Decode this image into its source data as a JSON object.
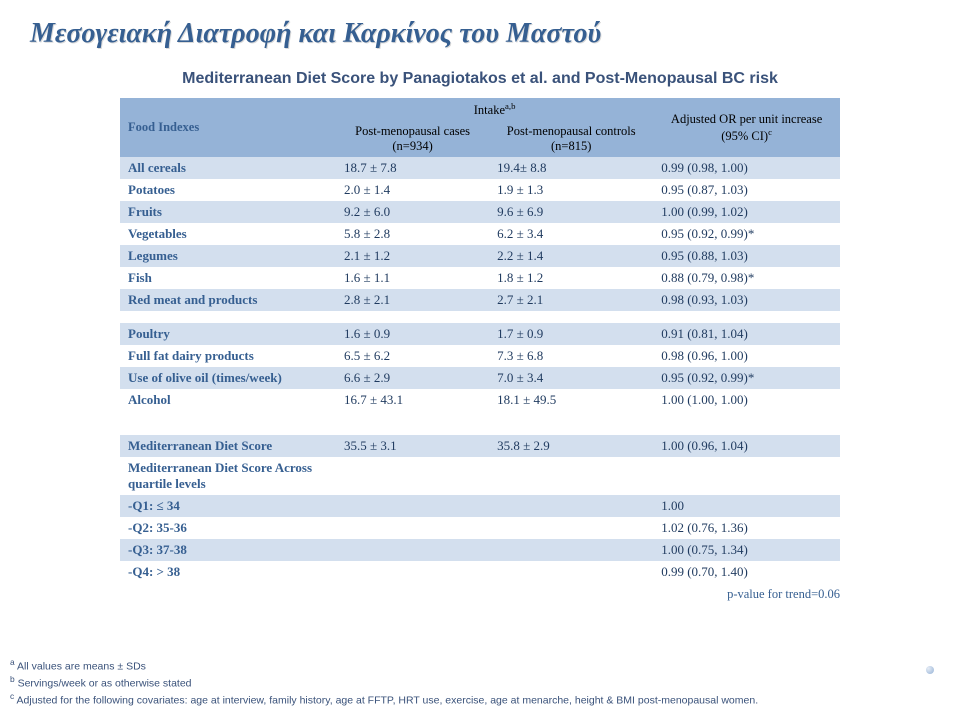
{
  "title": "Μεσογειακή Διατροφή και Καρκίνος του Μαστού",
  "subtitle": "Mediterranean Diet Score by Panagiotakos et al. and Post-Menopausal BC risk",
  "headers": {
    "food_indexes": "Food Indexes",
    "intake": "Intake",
    "intake_sup": "a,b",
    "cases": "Post-menopausal cases (n=934)",
    "controls": "Post-menopausal controls (n=815)",
    "adjusted": "Adjusted OR per unit increase (95% CI)",
    "adjusted_sup": "c"
  },
  "rows1": [
    {
      "label": "All cereals",
      "cases": "18.7 ± 7.8",
      "controls": "19.4± 8.8",
      "or": "0.99 (0.98, 1.00)"
    },
    {
      "label": "Potatoes",
      "cases": "2.0 ± 1.4",
      "controls": "1.9 ± 1.3",
      "or": "0.95 (0.87, 1.03)"
    },
    {
      "label": "Fruits",
      "cases": "9.2 ± 6.0",
      "controls": "9.6 ± 6.9",
      "or": "1.00 (0.99, 1.02)"
    },
    {
      "label": "Vegetables",
      "cases": "5.8 ± 2.8",
      "controls": "6.2 ± 3.4",
      "or": "0.95 (0.92, 0.99)*"
    },
    {
      "label": "Legumes",
      "cases": "2.1 ± 1.2",
      "controls": "2.2 ± 1.4",
      "or": "0.95 (0.88, 1.03)"
    },
    {
      "label": "Fish",
      "cases": "1.6 ± 1.1",
      "controls": "1.8 ± 1.2",
      "or": "0.88 (0.79, 0.98)*"
    },
    {
      "label": "Red meat and products",
      "cases": "2.8 ± 2.1",
      "controls": "2.7 ± 2.1",
      "or": "0.98 (0.93, 1.03)"
    }
  ],
  "rows2": [
    {
      "label": "Poultry",
      "cases": "1.6 ± 0.9",
      "controls": "1.7 ± 0.9",
      "or": "0.91 (0.81, 1.04)"
    },
    {
      "label": "Full fat dairy products",
      "cases": "6.5 ± 6.2",
      "controls": "7.3 ± 6.8",
      "or": "0.98 (0.96, 1.00)"
    },
    {
      "label": "Use of olive oil (times/week)",
      "cases": "6.6 ± 2.9",
      "controls": "7.0 ± 3.4",
      "or": "0.95 (0.92, 0.99)*"
    },
    {
      "label": "Alcohol",
      "cases": "16.7 ± 43.1",
      "controls": "18.1 ± 49.5",
      "or": "1.00 (1.00, 1.00)"
    }
  ],
  "rows3": [
    {
      "label": "Mediterranean Diet Score",
      "cases": "35.5 ± 3.1",
      "controls": "35.8 ± 2.9",
      "or": "1.00 (0.96, 1.04)"
    },
    {
      "label": "Mediterranean Diet Score Across  quartile levels",
      "cases": "",
      "controls": "",
      "or": ""
    },
    {
      "label": "-Q1: ≤ 34",
      "cases": "",
      "controls": "",
      "or": "1.00"
    },
    {
      "label": "-Q2: 35-36",
      "cases": "",
      "controls": "",
      "or": "1.02 (0.76, 1.36)"
    },
    {
      "label": "-Q3: 37-38",
      "cases": "",
      "controls": "",
      "or": "1.00 (0.75, 1.34)"
    },
    {
      "label": "-Q4: > 38",
      "cases": "",
      "controls": "",
      "or": "0.99 (0.70, 1.40)"
    }
  ],
  "pvalue": "p-value for trend=0.06",
  "footnotes": {
    "a": "All values are means ± SDs",
    "b": "Servings/week or as otherwise stated",
    "c": "Adjusted for the following covariates: age at interview, family history, age at FFTP, HRT use, exercise, age at menarche, height & BMI post-menopausal women."
  },
  "colors": {
    "header_text": "#365f91",
    "band_dark": "#95b3d7",
    "band_light": "#d3dfee",
    "background": "#ffffff"
  }
}
